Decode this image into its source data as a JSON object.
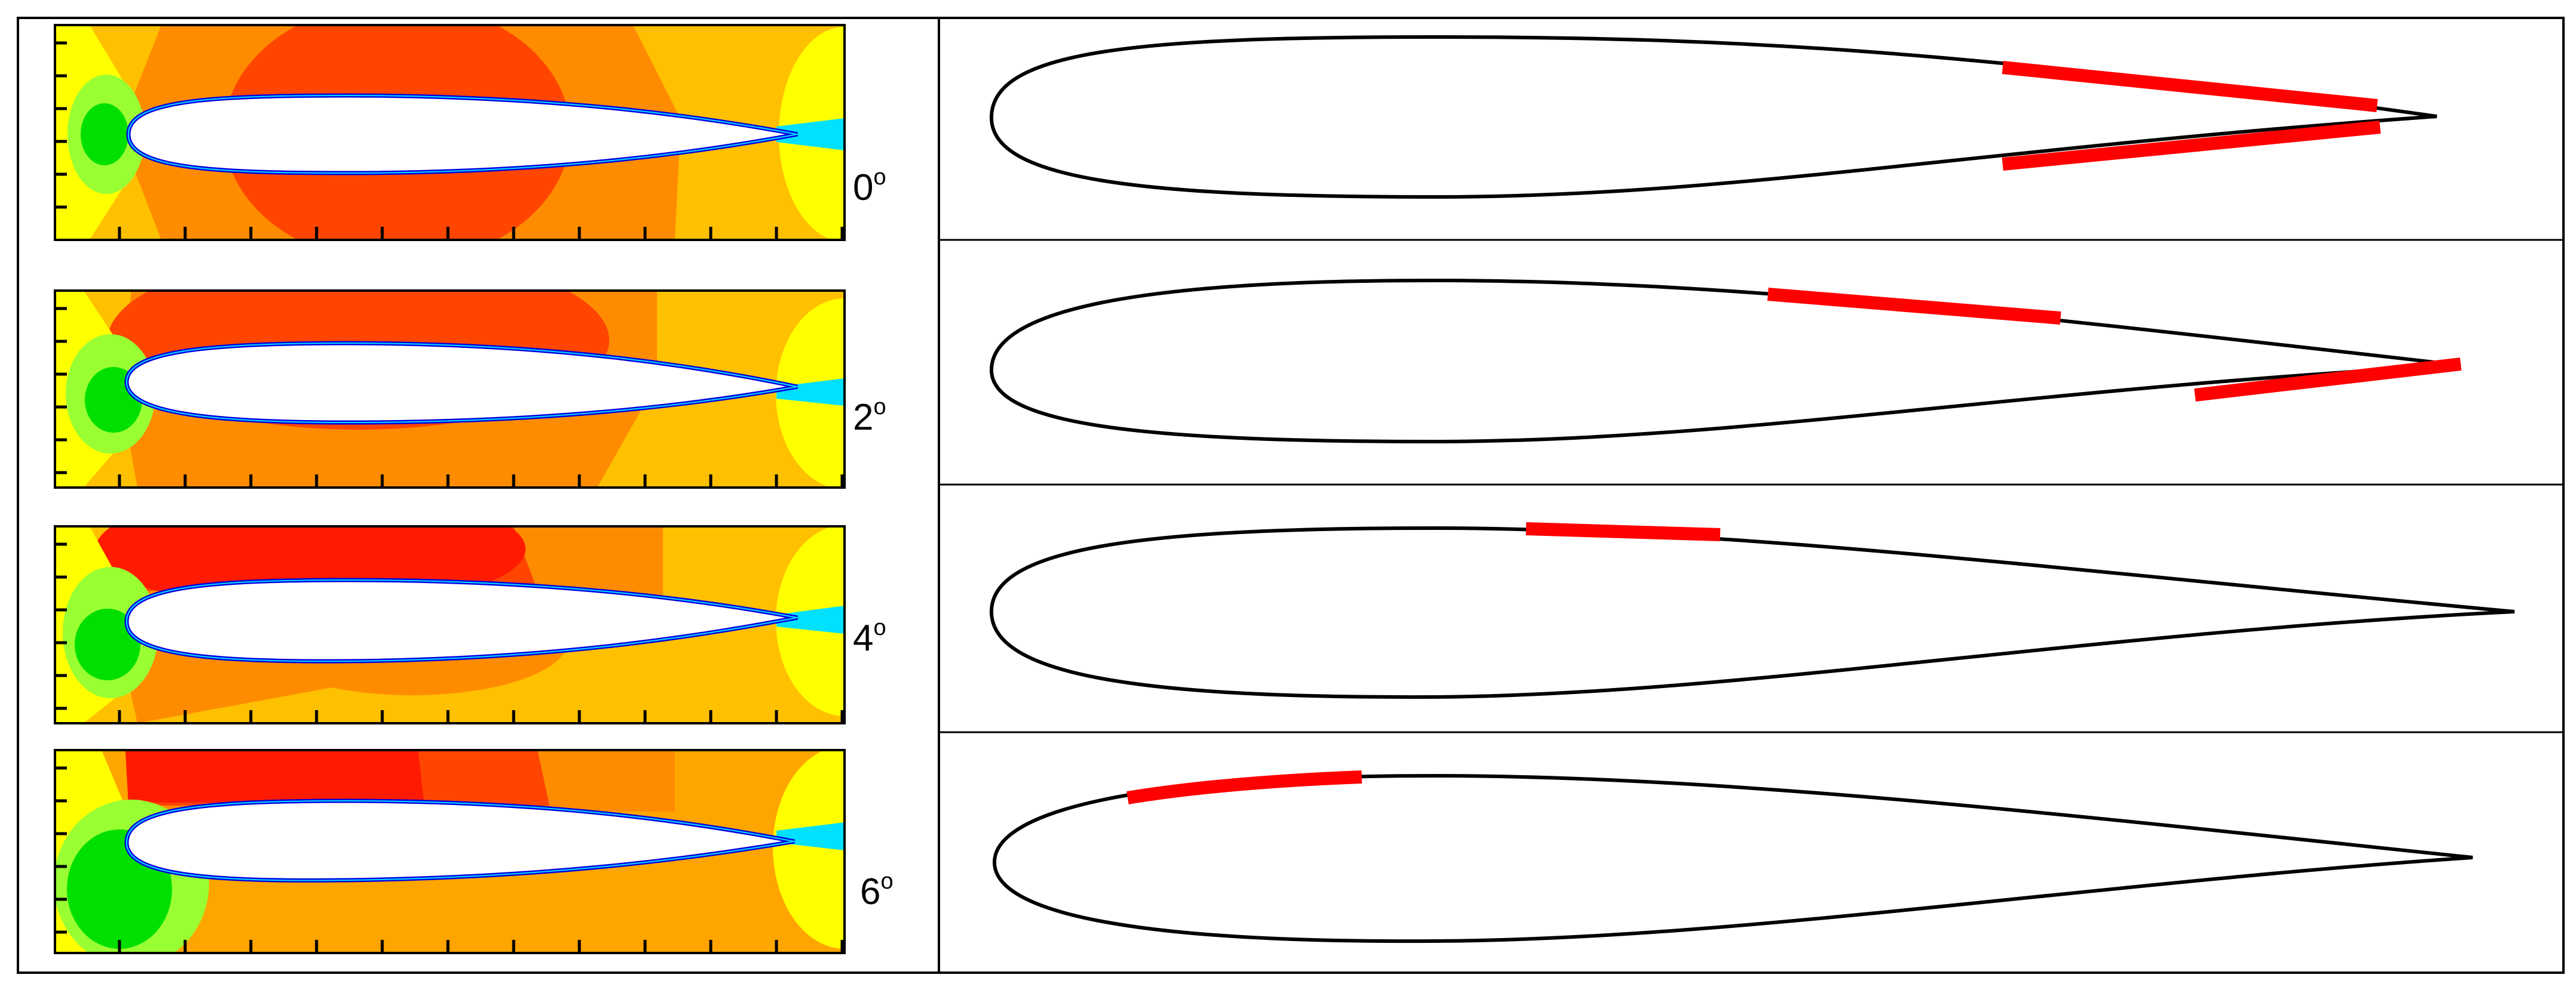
{
  "panels": [
    {
      "angle": "0",
      "degree": "o"
    },
    {
      "angle": "2",
      "degree": "o"
    },
    {
      "angle": "4",
      "degree": "o"
    },
    {
      "angle": "6",
      "degree": "o"
    }
  ],
  "colors": {
    "red": "#ff1a00",
    "orange_red": "#ff4500",
    "orange": "#ff8c00",
    "light_orange": "#ffa500",
    "amber": "#ffc000",
    "yellow": "#ffff00",
    "yellow_green": "#d4ff00",
    "light_green": "#99ff33",
    "green": "#00e000",
    "cyan": "#00e0ff",
    "blue": "#0000e0",
    "highlight": "#ff0000",
    "outline": "#000000"
  }
}
